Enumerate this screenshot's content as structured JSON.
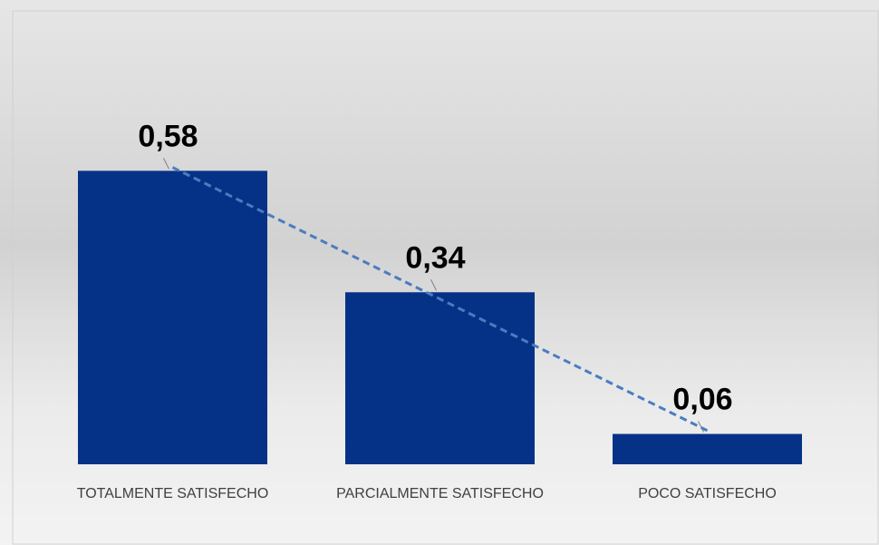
{
  "chart_data": {
    "type": "bar",
    "categories": [
      "TOTALMENTE SATISFECHO",
      "PARCIALMENTE SATISFECHO",
      "POCO SATISFECHO"
    ],
    "values": [
      0.58,
      0.34,
      0.06
    ],
    "value_labels": [
      "0,58",
      "0,34",
      "0,06"
    ],
    "color": "#053287",
    "trendline": true,
    "trendline_color": "#4a7cc0"
  }
}
